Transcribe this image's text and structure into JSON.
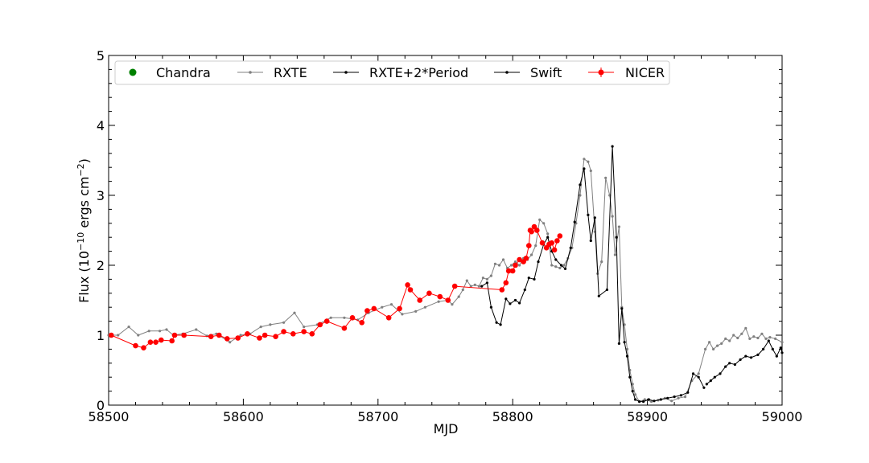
{
  "chart_data": {
    "type": "line",
    "title": "",
    "xlabel": "MJD",
    "ylabel_parts": {
      "prefix": "Flux (10",
      "exp1": "−10",
      "mid": " ergs cm",
      "exp2": "−2",
      "suffix": ")"
    },
    "xlim": [
      58500,
      59000
    ],
    "ylim": [
      0,
      5
    ],
    "xticks": [
      58500,
      58600,
      58700,
      58800,
      58900,
      59000
    ],
    "yticks": [
      0,
      1,
      2,
      3,
      4,
      5
    ],
    "grid": false,
    "legend_position": "top",
    "series": [
      {
        "name": "Chandra",
        "color": "#008000",
        "marker": "large-dot",
        "line": false,
        "points": []
      },
      {
        "name": "RXTE",
        "color": "#808080",
        "marker": "small-dot",
        "line": true,
        "points": [
          [
            58500,
            1.0
          ],
          [
            58507,
            1.0
          ],
          [
            58515,
            1.12
          ],
          [
            58522,
            1.0
          ],
          [
            58530,
            1.06
          ],
          [
            58538,
            1.06
          ],
          [
            58543,
            1.08
          ],
          [
            58548,
            1.0
          ],
          [
            58555,
            1.02
          ],
          [
            58565,
            1.08
          ],
          [
            58573,
            0.99
          ],
          [
            58580,
            1.02
          ],
          [
            58590,
            0.9
          ],
          [
            58598,
            1.0
          ],
          [
            58605,
            1.02
          ],
          [
            58613,
            1.12
          ],
          [
            58620,
            1.15
          ],
          [
            58630,
            1.18
          ],
          [
            58638,
            1.32
          ],
          [
            58645,
            1.12
          ],
          [
            58655,
            1.15
          ],
          [
            58665,
            1.25
          ],
          [
            58675,
            1.25
          ],
          [
            58685,
            1.22
          ],
          [
            58693,
            1.32
          ],
          [
            58703,
            1.4
          ],
          [
            58710,
            1.44
          ],
          [
            58718,
            1.3
          ],
          [
            58728,
            1.34
          ],
          [
            58735,
            1.4
          ],
          [
            58745,
            1.48
          ],
          [
            58752,
            1.5
          ],
          [
            58755,
            1.44
          ],
          [
            58760,
            1.55
          ],
          [
            58763,
            1.65
          ],
          [
            58766,
            1.78
          ],
          [
            58769,
            1.7
          ],
          [
            58772,
            1.72
          ],
          [
            58775,
            1.7
          ],
          [
            58778,
            1.82
          ],
          [
            58781,
            1.8
          ],
          [
            58784,
            1.85
          ],
          [
            58787,
            2.02
          ],
          [
            58790,
            2.0
          ],
          [
            58793,
            2.08
          ],
          [
            58796,
            1.96
          ],
          [
            58799,
            2.0
          ],
          [
            58802,
            2.05
          ],
          [
            58805,
            2.0
          ],
          [
            58808,
            2.1
          ],
          [
            58811,
            2.08
          ],
          [
            58814,
            2.15
          ],
          [
            58817,
            2.28
          ],
          [
            58820,
            2.65
          ],
          [
            58823,
            2.6
          ],
          [
            58826,
            2.45
          ],
          [
            58829,
            2.0
          ],
          [
            58832,
            1.98
          ],
          [
            58835,
            1.96
          ],
          [
            58838,
            2.0
          ],
          [
            58841,
            2.1
          ],
          [
            58844,
            2.25
          ],
          [
            58847,
            2.6
          ],
          [
            58850,
            3.0
          ],
          [
            58853,
            3.52
          ],
          [
            58856,
            3.48
          ],
          [
            58858,
            3.35
          ],
          [
            58861,
            2.48
          ],
          [
            58863,
            1.88
          ],
          [
            58866,
            2.05
          ],
          [
            58869,
            3.25
          ],
          [
            58872,
            3.0
          ],
          [
            58874,
            2.7
          ],
          [
            58876,
            2.15
          ],
          [
            58879,
            2.55
          ],
          [
            58881,
            1.4
          ],
          [
            58883,
            1.15
          ],
          [
            58885,
            0.8
          ],
          [
            58887,
            0.5
          ],
          [
            58889,
            0.3
          ],
          [
            58891,
            0.15
          ],
          [
            58894,
            0.05
          ],
          [
            58898,
            0.08
          ],
          [
            58903,
            0.05
          ],
          [
            58908,
            0.07
          ],
          [
            58913,
            0.1
          ],
          [
            58918,
            0.06
          ],
          [
            58923,
            0.1
          ],
          [
            58928,
            0.12
          ],
          [
            58933,
            0.35
          ],
          [
            58938,
            0.45
          ],
          [
            58943,
            0.8
          ],
          [
            58946,
            0.9
          ],
          [
            58949,
            0.8
          ],
          [
            58952,
            0.85
          ],
          [
            58955,
            0.88
          ],
          [
            58958,
            0.95
          ],
          [
            58961,
            0.92
          ],
          [
            58964,
            1.0
          ],
          [
            58967,
            0.96
          ],
          [
            58970,
            1.02
          ],
          [
            58973,
            1.1
          ],
          [
            58976,
            0.95
          ],
          [
            58979,
            0.98
          ],
          [
            58982,
            0.96
          ],
          [
            58985,
            1.02
          ],
          [
            58988,
            0.95
          ],
          [
            58991,
            0.97
          ],
          [
            58995,
            0.95
          ],
          [
            59000,
            0.9
          ]
        ]
      },
      {
        "name": "RXTE+2*Period",
        "color": "#000000",
        "marker": "small-dot",
        "line": true,
        "points": [
          [
            58777,
            1.7
          ],
          [
            58781,
            1.75
          ],
          [
            58784,
            1.4
          ],
          [
            58788,
            1.18
          ],
          [
            58791,
            1.15
          ],
          [
            58795,
            1.52
          ],
          [
            58798,
            1.45
          ],
          [
            58802,
            1.5
          ],
          [
            58805,
            1.46
          ],
          [
            58809,
            1.65
          ],
          [
            58812,
            1.82
          ],
          [
            58816,
            1.8
          ],
          [
            58819,
            2.05
          ],
          [
            58823,
            2.3
          ],
          [
            58826,
            2.4
          ],
          [
            58829,
            2.2
          ],
          [
            58832,
            2.08
          ],
          [
            58836,
            2.0
          ],
          [
            58839,
            1.95
          ],
          [
            58843,
            2.25
          ],
          [
            58846,
            2.62
          ],
          [
            58850,
            3.15
          ],
          [
            58853,
            3.38
          ],
          [
            58856,
            2.72
          ],
          [
            58858,
            2.35
          ],
          [
            58861,
            2.68
          ],
          [
            58864,
            1.56
          ],
          [
            58870,
            1.65
          ],
          [
            58874,
            3.7
          ],
          [
            58877,
            2.4
          ],
          [
            58879,
            0.88
          ],
          [
            58881,
            1.38
          ],
          [
            58883,
            0.9
          ],
          [
            58885,
            0.7
          ],
          [
            58887,
            0.4
          ],
          [
            58889,
            0.2
          ],
          [
            58891,
            0.08
          ],
          [
            58894,
            0.05
          ],
          [
            58897,
            0.05
          ],
          [
            58901,
            0.08
          ],
          [
            58905,
            0.06
          ],
          [
            58910,
            0.08
          ],
          [
            58915,
            0.1
          ],
          [
            58920,
            0.12
          ],
          [
            58925,
            0.14
          ],
          [
            58930,
            0.18
          ],
          [
            58934,
            0.45
          ],
          [
            58938,
            0.4
          ],
          [
            58942,
            0.25
          ]
        ]
      },
      {
        "name": "Swift",
        "color": "#000000",
        "marker": "small-dot",
        "line": true,
        "points": [
          [
            58944,
            0.3
          ],
          [
            58947,
            0.35
          ],
          [
            58950,
            0.4
          ],
          [
            58954,
            0.45
          ],
          [
            58958,
            0.55
          ],
          [
            58961,
            0.6
          ],
          [
            58965,
            0.58
          ],
          [
            58969,
            0.65
          ],
          [
            58973,
            0.7
          ],
          [
            58977,
            0.68
          ],
          [
            58982,
            0.72
          ],
          [
            58986,
            0.8
          ],
          [
            58990,
            0.92
          ],
          [
            58993,
            0.8
          ],
          [
            58996,
            0.7
          ],
          [
            58999,
            0.82
          ],
          [
            59000,
            0.75
          ]
        ]
      },
      {
        "name": "NICER",
        "color": "#ff0000",
        "marker": "large-dot-errorbar",
        "line": true,
        "points": [
          [
            58502,
            1.0
          ],
          [
            58520,
            0.85
          ],
          [
            58526,
            0.82
          ],
          [
            58531,
            0.9
          ],
          [
            58535,
            0.9
          ],
          [
            58539,
            0.93
          ],
          [
            58547,
            0.92
          ],
          [
            58549,
            1.0
          ],
          [
            58556,
            1.0
          ],
          [
            58576,
            0.98
          ],
          [
            58582,
            1.0
          ],
          [
            58588,
            0.95
          ],
          [
            58596,
            0.96
          ],
          [
            58603,
            1.02
          ],
          [
            58612,
            0.96
          ],
          [
            58616,
            1.0
          ],
          [
            58624,
            0.98
          ],
          [
            58630,
            1.05
          ],
          [
            58637,
            1.02
          ],
          [
            58645,
            1.05
          ],
          [
            58651,
            1.02
          ],
          [
            58657,
            1.15
          ],
          [
            58662,
            1.2
          ],
          [
            58675,
            1.1
          ],
          [
            58681,
            1.25
          ],
          [
            58688,
            1.18
          ],
          [
            58692,
            1.35
          ],
          [
            58697,
            1.38
          ],
          [
            58708,
            1.25
          ],
          [
            58716,
            1.38
          ],
          [
            58722,
            1.72
          ],
          [
            58724,
            1.65
          ],
          [
            58731,
            1.5
          ],
          [
            58738,
            1.6
          ],
          [
            58746,
            1.55
          ],
          [
            58752,
            1.5
          ],
          [
            58757,
            1.7
          ],
          [
            58792,
            1.65
          ],
          [
            58795,
            1.75
          ],
          [
            58797,
            1.92
          ],
          [
            58800,
            1.92
          ],
          [
            58802,
            2.0
          ],
          [
            58805,
            2.08
          ],
          [
            58808,
            2.05
          ],
          [
            58810,
            2.1
          ],
          [
            58812,
            2.28
          ],
          [
            58813,
            2.5
          ],
          [
            58814,
            2.48
          ],
          [
            58816,
            2.55
          ],
          [
            58818,
            2.5
          ],
          [
            58822,
            2.32
          ],
          [
            58825,
            2.25
          ],
          [
            58827,
            2.3
          ],
          [
            58829,
            2.32
          ],
          [
            58831,
            2.22
          ],
          [
            58833,
            2.35
          ],
          [
            58835,
            2.42
          ]
        ]
      }
    ]
  }
}
